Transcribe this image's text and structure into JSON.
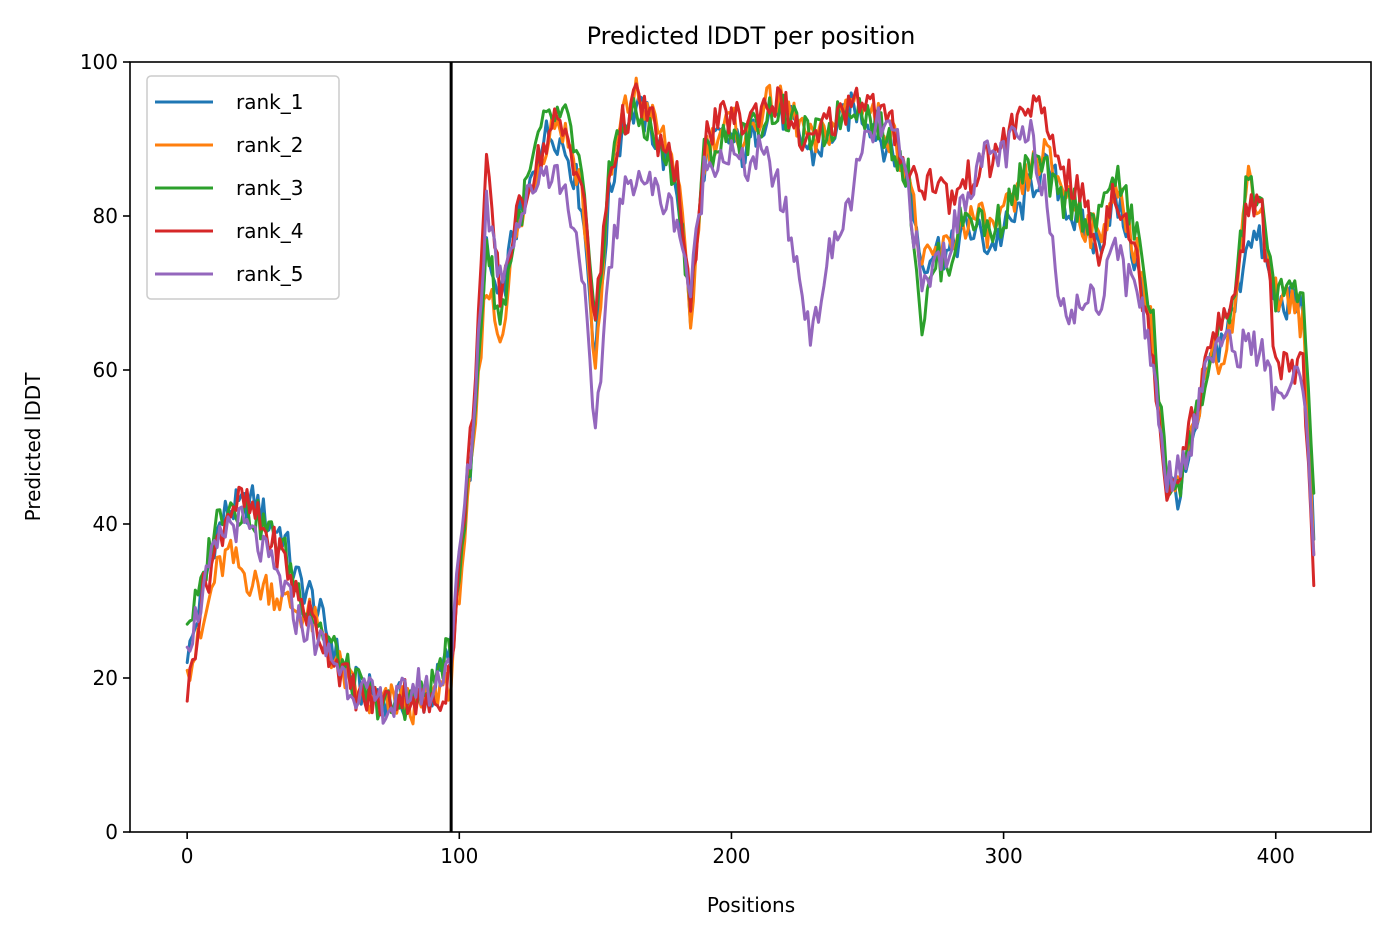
{
  "chart_data": {
    "type": "line",
    "title": "Predicted lDDT per position",
    "xlabel": "Positions",
    "ylabel": "Predicted lDDT",
    "xlim": [
      -21,
      435
    ],
    "ylim": [
      0,
      100
    ],
    "xticks": [
      0,
      100,
      200,
      300,
      400
    ],
    "yticks": [
      0,
      20,
      40,
      60,
      80,
      100
    ],
    "grid": false,
    "legend_position": "top-left",
    "vertical_line_x": 97,
    "vertical_line_color": "#000000",
    "anchors": [
      0,
      5,
      10,
      15,
      20,
      25,
      30,
      35,
      40,
      45,
      50,
      55,
      60,
      65,
      70,
      75,
      80,
      85,
      90,
      95,
      97,
      100,
      105,
      110,
      115,
      120,
      125,
      130,
      135,
      140,
      145,
      150,
      155,
      160,
      165,
      170,
      175,
      180,
      185,
      190,
      195,
      200,
      205,
      210,
      215,
      220,
      225,
      230,
      235,
      240,
      245,
      250,
      255,
      260,
      265,
      270,
      275,
      280,
      285,
      290,
      295,
      300,
      305,
      310,
      315,
      320,
      325,
      330,
      335,
      340,
      345,
      350,
      355,
      360,
      365,
      370,
      375,
      380,
      385,
      390,
      395,
      400,
      405,
      410,
      414
    ],
    "series": [
      {
        "name": "rank_1",
        "color": "#1f77b4",
        "values": [
          22,
          30,
          38,
          42,
          42,
          43,
          40,
          39,
          33,
          31,
          27,
          23,
          20,
          18,
          18,
          17,
          17,
          17,
          18,
          22,
          24,
          36,
          50,
          75,
          68,
          78,
          82,
          90,
          91,
          88,
          82,
          62,
          82,
          92,
          94,
          92,
          88,
          84,
          67,
          87,
          90,
          90,
          88,
          92,
          94,
          93,
          90,
          88,
          90,
          92,
          94,
          93,
          90,
          88,
          85,
          74,
          76,
          75,
          78,
          78,
          76,
          78,
          80,
          84,
          86,
          84,
          80,
          78,
          76,
          82,
          79,
          72,
          62,
          45,
          44,
          50,
          60,
          64,
          68,
          78,
          76,
          68,
          69,
          68,
          38
        ]
      },
      {
        "name": "rank_2",
        "color": "#ff7f0e",
        "values": [
          21,
          25,
          33,
          36,
          34,
          32,
          32,
          30,
          29,
          28,
          25,
          22,
          19,
          17,
          16,
          17,
          17,
          16,
          17,
          20,
          19,
          32,
          48,
          72,
          64,
          76,
          82,
          88,
          93,
          90,
          84,
          60,
          84,
          93,
          96,
          93,
          90,
          86,
          66,
          88,
          91,
          92,
          90,
          93,
          95,
          94,
          92,
          89,
          91,
          93,
          96,
          94,
          92,
          90,
          86,
          73,
          75,
          76,
          79,
          80,
          78,
          80,
          82,
          86,
          88,
          85,
          82,
          79,
          77,
          83,
          80,
          74,
          64,
          43,
          45,
          52,
          62,
          62,
          68,
          86,
          80,
          70,
          69,
          66,
          36
        ]
      },
      {
        "name": "rank_3",
        "color": "#2ca02c",
        "values": [
          27,
          31,
          40,
          43,
          42,
          41,
          39,
          37,
          32,
          29,
          26,
          23,
          20,
          18,
          17,
          16,
          17,
          17,
          19,
          23,
          22,
          35,
          50,
          77,
          66,
          77,
          84,
          91,
          93,
          92,
          85,
          64,
          86,
          92,
          93,
          91,
          88,
          85,
          68,
          88,
          89,
          91,
          90,
          92,
          94,
          93,
          91,
          90,
          91,
          93,
          95,
          93,
          91,
          89,
          85,
          66,
          74,
          74,
          80,
          80,
          78,
          80,
          84,
          87,
          86,
          82,
          82,
          80,
          79,
          86,
          82,
          76,
          66,
          45,
          46,
          53,
          60,
          64,
          70,
          86,
          80,
          70,
          70,
          70,
          44
        ]
      },
      {
        "name": "rank_4",
        "color": "#d62728",
        "values": [
          17,
          30,
          36,
          42,
          43,
          41,
          38,
          36,
          31,
          28,
          25,
          22,
          19,
          17,
          17,
          17,
          18,
          17,
          16,
          19,
          22,
          34,
          55,
          86,
          70,
          78,
          84,
          88,
          92,
          90,
          84,
          66,
          85,
          92,
          95,
          93,
          88,
          86,
          67,
          90,
          92,
          93,
          92,
          94,
          95,
          94,
          90,
          89,
          92,
          93,
          96,
          95,
          93,
          91,
          86,
          84,
          85,
          82,
          84,
          86,
          87,
          90,
          92,
          95,
          92,
          88,
          84,
          82,
          74,
          84,
          80,
          72,
          62,
          44,
          48,
          54,
          62,
          66,
          70,
          82,
          80,
          62,
          60,
          60,
          32
        ]
      },
      {
        "name": "rank_5",
        "color": "#9467bd",
        "values": [
          24,
          30,
          36,
          40,
          40,
          38,
          35,
          32,
          28,
          26,
          24,
          22,
          19,
          18,
          17,
          16,
          18,
          19,
          18,
          22,
          23,
          36,
          52,
          82,
          72,
          78,
          82,
          86,
          86,
          82,
          74,
          50,
          74,
          82,
          86,
          84,
          82,
          80,
          70,
          86,
          88,
          88,
          86,
          88,
          86,
          80,
          72,
          64,
          74,
          78,
          84,
          90,
          92,
          90,
          84,
          70,
          74,
          76,
          82,
          86,
          88,
          88,
          90,
          90,
          84,
          72,
          66,
          70,
          68,
          78,
          72,
          70,
          60,
          46,
          48,
          52,
          62,
          64,
          62,
          64,
          62,
          56,
          58,
          58,
          36
        ]
      }
    ]
  }
}
